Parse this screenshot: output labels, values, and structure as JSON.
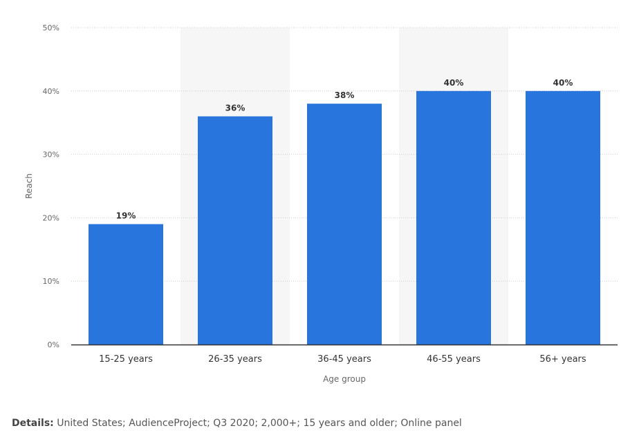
{
  "colors": {
    "bar": "#2876dd",
    "grid": "#cccccc",
    "axis": "#333333",
    "band": "#f6f6f6"
  },
  "chart_data": {
    "type": "bar",
    "categories": [
      "15-25 years",
      "26-35 years",
      "36-45 years",
      "46-55 years",
      "56+ years"
    ],
    "values": [
      19,
      36,
      38,
      40,
      40
    ],
    "data_labels": [
      "19%",
      "36%",
      "38%",
      "40%",
      "40%"
    ],
    "xlabel": "Age group",
    "ylabel": "Reach",
    "ylim": [
      0,
      50
    ],
    "yticks": [
      0,
      10,
      20,
      30,
      40,
      50
    ],
    "ytick_labels": [
      "0%",
      "10%",
      "20%",
      "30%",
      "40%",
      "50%"
    ],
    "grid": true,
    "shaded_category_indices": [
      1,
      3
    ]
  },
  "details": {
    "label": "Details:",
    "text": "United States; AudienceProject; Q3 2020; 2,000+; 15 years and older; Online panel"
  }
}
